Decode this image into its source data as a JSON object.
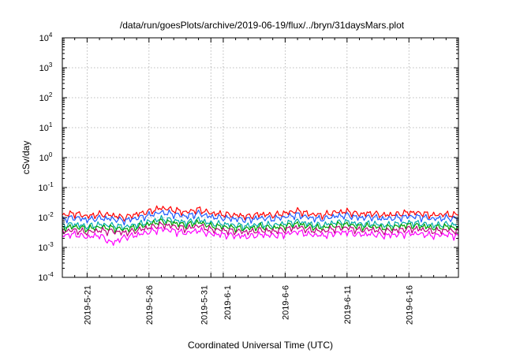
{
  "chart_data": {
    "type": "line",
    "title": "/data/run/goesPlots/archive/2019-06-19/flux/../bryn/31daysMars.plot",
    "xlabel": "Coordinated Universal Time (UTC)",
    "ylabel": "cSv/day",
    "yscale": "log",
    "ylim": [
      0.0001,
      10000
    ],
    "xlim": [
      "2019-05-19",
      "2019-06-20"
    ],
    "grid": true,
    "legend": "none",
    "y_ticks": [
      {
        "base": "10",
        "exp": "-4",
        "value": 0.0001
      },
      {
        "base": "10",
        "exp": "-3",
        "value": 0.001
      },
      {
        "base": "10",
        "exp": "-2",
        "value": 0.01
      },
      {
        "base": "10",
        "exp": "-1",
        "value": 0.1
      },
      {
        "base": "10",
        "exp": "0",
        "value": 1
      },
      {
        "base": "10",
        "exp": "1",
        "value": 10
      },
      {
        "base": "10",
        "exp": "2",
        "value": 100
      },
      {
        "base": "10",
        "exp": "3",
        "value": 1000
      },
      {
        "base": "10",
        "exp": "4",
        "value": 10000
      }
    ],
    "x_ticks": [
      {
        "label": "2019-5-21",
        "date": "2019-05-21"
      },
      {
        "label": "2019-5-26",
        "date": "2019-05-26"
      },
      {
        "label": "2019-5-31",
        "date": "2019-05-31"
      },
      {
        "label": "2019-6-1",
        "date": "2019-06-01"
      },
      {
        "label": "2019-6-6",
        "date": "2019-06-06"
      },
      {
        "label": "2019-6-11",
        "date": "2019-06-11"
      },
      {
        "label": "2019-6-16",
        "date": "2019-06-16"
      }
    ],
    "x_dates": [
      "2019-05-19",
      "2019-05-20",
      "2019-05-21",
      "2019-05-22",
      "2019-05-23",
      "2019-05-24",
      "2019-05-25",
      "2019-05-26",
      "2019-05-27",
      "2019-05-28",
      "2019-05-29",
      "2019-05-30",
      "2019-05-31",
      "2019-06-01",
      "2019-06-02",
      "2019-06-03",
      "2019-06-04",
      "2019-06-05",
      "2019-06-06",
      "2019-06-07",
      "2019-06-08",
      "2019-06-09",
      "2019-06-10",
      "2019-06-11",
      "2019-06-12",
      "2019-06-13",
      "2019-06-14",
      "2019-06-15",
      "2019-06-16",
      "2019-06-17",
      "2019-06-18",
      "2019-06-19",
      "2019-06-20"
    ],
    "series": [
      {
        "color": "#ff0000",
        "values": [
          0.012,
          0.014,
          0.011,
          0.013,
          0.012,
          0.01,
          0.013,
          0.016,
          0.021,
          0.018,
          0.015,
          0.019,
          0.014,
          0.013,
          0.012,
          0.011,
          0.013,
          0.012,
          0.014,
          0.017,
          0.013,
          0.012,
          0.015,
          0.016,
          0.013,
          0.014,
          0.012,
          0.013,
          0.015,
          0.014,
          0.012,
          0.013,
          0.012
        ]
      },
      {
        "color": "#1e5aff",
        "values": [
          0.009,
          0.01,
          0.0085,
          0.0095,
          0.009,
          0.008,
          0.0095,
          0.012,
          0.015,
          0.013,
          0.011,
          0.014,
          0.0105,
          0.0098,
          0.009,
          0.0085,
          0.0098,
          0.009,
          0.0105,
          0.0125,
          0.0098,
          0.009,
          0.011,
          0.012,
          0.0098,
          0.0105,
          0.009,
          0.0098,
          0.011,
          0.0105,
          0.009,
          0.0098,
          0.009
        ]
      },
      {
        "color": "#00aaaa",
        "values": [
          0.0055,
          0.006,
          0.005,
          0.0058,
          0.0055,
          0.0048,
          0.0058,
          0.0072,
          0.009,
          0.008,
          0.0068,
          0.0085,
          0.0063,
          0.006,
          0.0055,
          0.0052,
          0.006,
          0.0055,
          0.0063,
          0.0075,
          0.006,
          0.0055,
          0.0068,
          0.0072,
          0.006,
          0.0063,
          0.0055,
          0.006,
          0.0068,
          0.0063,
          0.0055,
          0.006,
          0.0055
        ]
      },
      {
        "color": "#00a000",
        "values": [
          0.0045,
          0.005,
          0.0042,
          0.0048,
          0.0045,
          0.004,
          0.0048,
          0.006,
          0.0075,
          0.0066,
          0.0056,
          0.007,
          0.0052,
          0.005,
          0.0045,
          0.0043,
          0.005,
          0.0045,
          0.0052,
          0.0062,
          0.005,
          0.0045,
          0.0056,
          0.006,
          0.005,
          0.0052,
          0.0045,
          0.005,
          0.0056,
          0.0052,
          0.0045,
          0.005,
          0.0045
        ]
      },
      {
        "color": "#c00080",
        "values": [
          0.0035,
          0.0038,
          0.0032,
          0.0037,
          0.0035,
          0.0031,
          0.0037,
          0.0046,
          0.0058,
          0.0051,
          0.0043,
          0.0054,
          0.004,
          0.0038,
          0.0035,
          0.0033,
          0.0038,
          0.0035,
          0.004,
          0.0048,
          0.0038,
          0.0035,
          0.0043,
          0.0046,
          0.0038,
          0.004,
          0.0035,
          0.0038,
          0.0043,
          0.004,
          0.0035,
          0.0038,
          0.0035
        ]
      },
      {
        "color": "#ff00ff",
        "values": [
          0.0025,
          0.0028,
          0.0022,
          0.0026,
          0.0014,
          0.0022,
          0.0026,
          0.0033,
          0.0042,
          0.0036,
          0.003,
          0.0038,
          0.0028,
          0.0027,
          0.0025,
          0.0023,
          0.0027,
          0.0025,
          0.0028,
          0.0034,
          0.0027,
          0.0025,
          0.003,
          0.0033,
          0.0027,
          0.0028,
          0.0025,
          0.0027,
          0.003,
          0.0028,
          0.0025,
          0.0027,
          0.0025
        ]
      }
    ]
  }
}
